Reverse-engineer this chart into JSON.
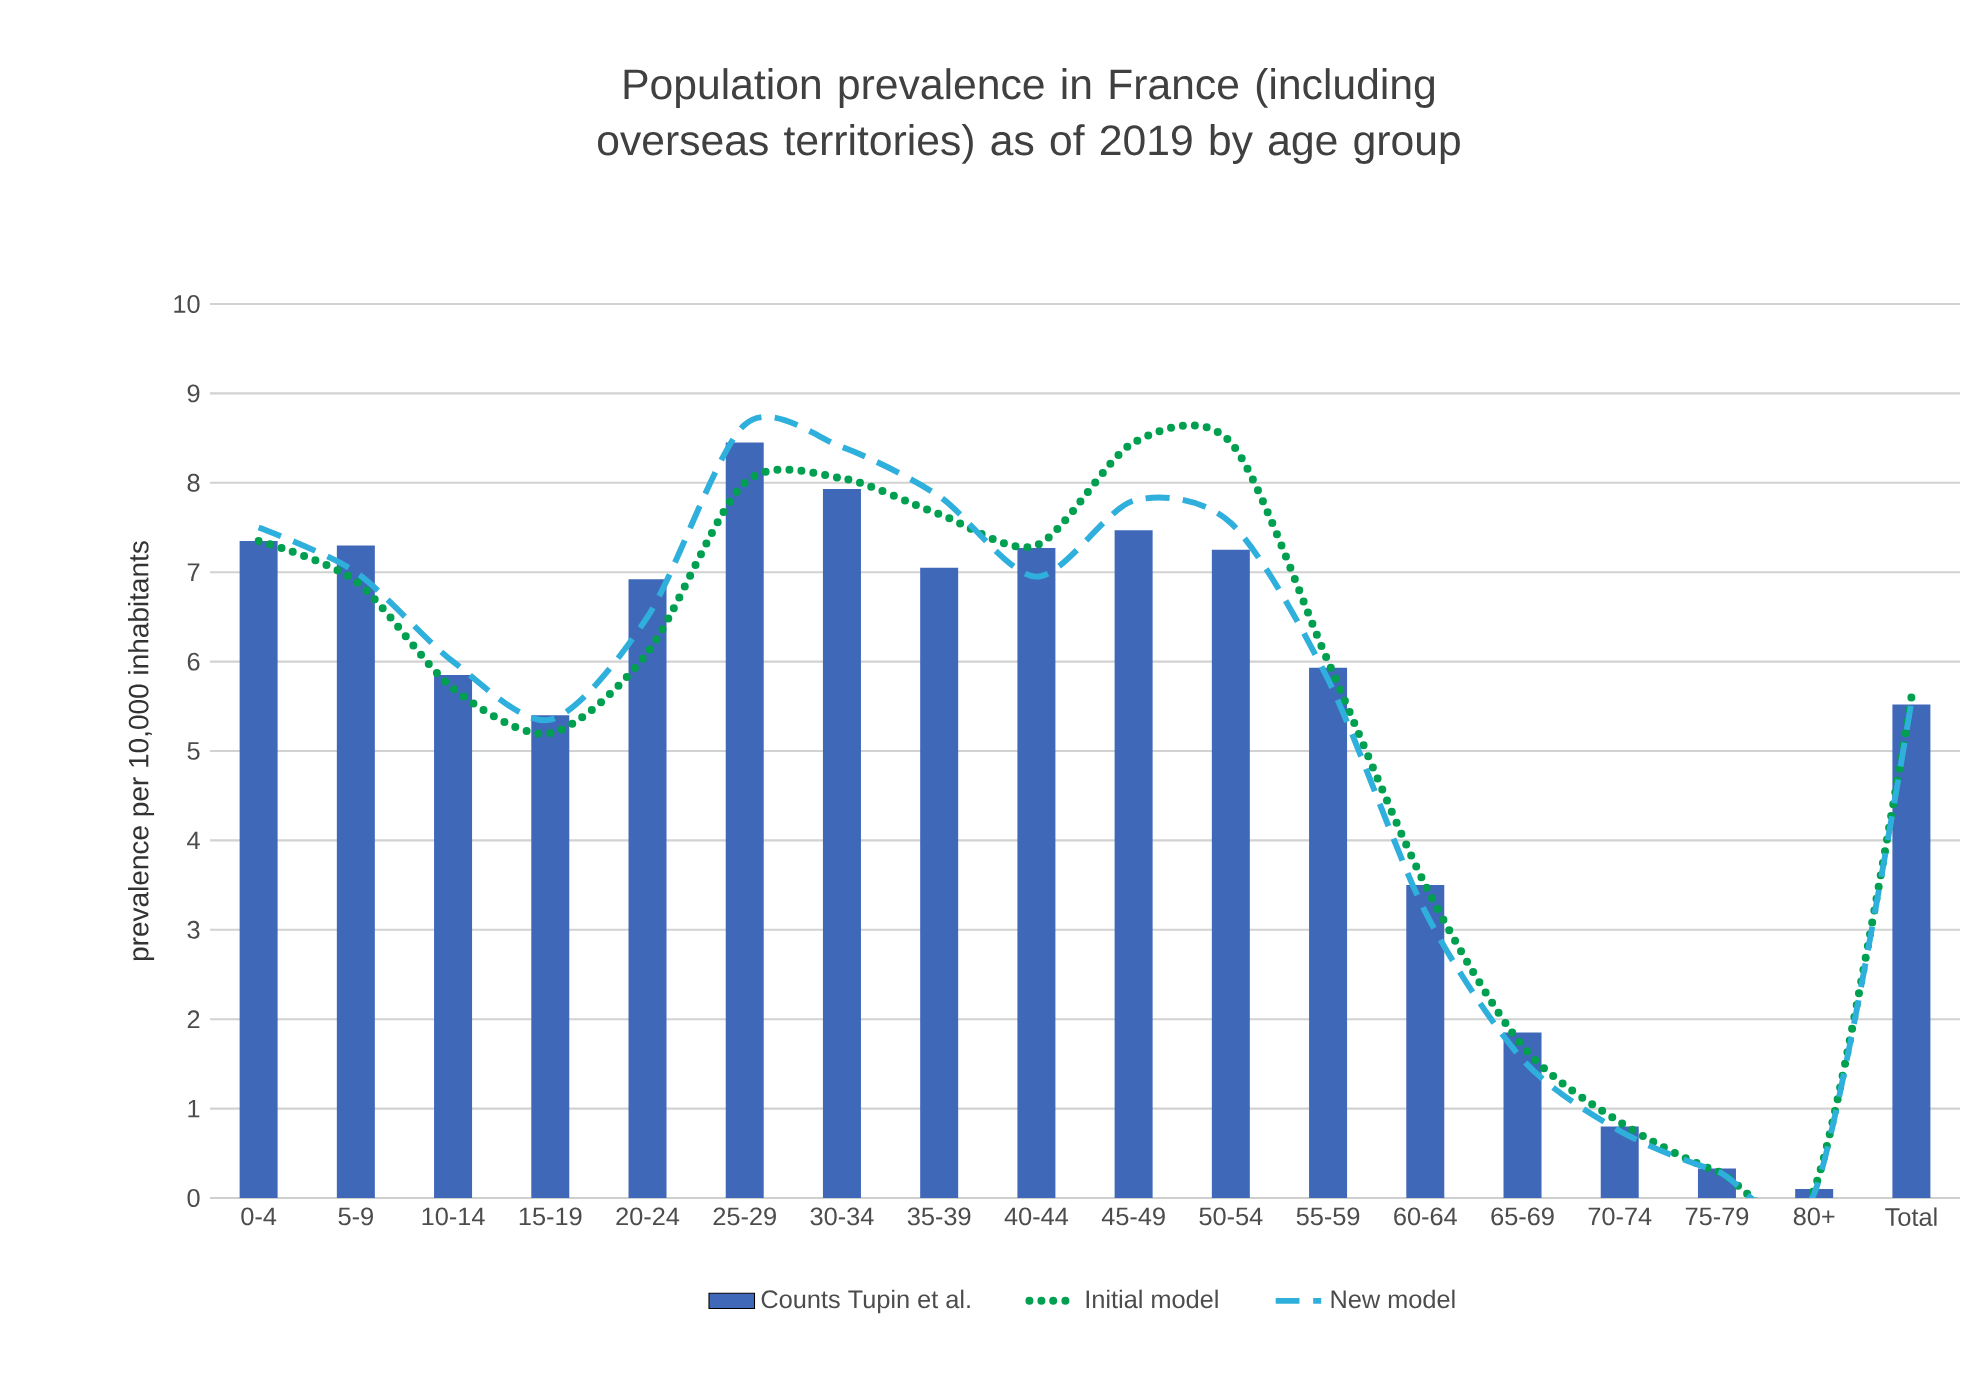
{
  "chart_data": {
    "type": "bar",
    "title": "Population prevalence in France (including overseas territories) as of 2019 by age group",
    "ylabel": "prevalence per 10,000 inhabitants",
    "categories": [
      "0-4",
      "5-9",
      "10-14",
      "15-19",
      "20-24",
      "25-29",
      "30-34",
      "35-39",
      "40-44",
      "45-49",
      "50-54",
      "55-59",
      "60-64",
      "65-69",
      "70-74",
      "75-79",
      "80+",
      "Total"
    ],
    "ylim": [
      0,
      10
    ],
    "yticks": [
      0,
      1,
      2,
      3,
      4,
      5,
      6,
      7,
      8,
      9,
      10
    ],
    "grid": "y",
    "legend": "bottom",
    "series": [
      {
        "name": "Counts Tupin et al.",
        "color": "#4068b8",
        "values": [
          7.35,
          7.3,
          5.85,
          5.4,
          6.92,
          8.45,
          7.93,
          7.05,
          7.27,
          7.47,
          7.25,
          5.93,
          3.5,
          1.85,
          0.8,
          0.33,
          0.1,
          5.52
        ]
      },
      {
        "name": "Initial model",
        "type": "line",
        "color": "#00a050",
        "line_style": "dotted",
        "values": [
          7.35,
          6.9,
          5.7,
          5.2,
          6.1,
          8.0,
          8.05,
          7.65,
          7.3,
          8.45,
          8.45,
          6.0,
          3.5,
          1.7,
          0.85,
          0.3,
          0.1,
          5.6
        ]
      },
      {
        "name": "New model",
        "type": "line",
        "color": "#2fb0dc",
        "line_style": "dashed",
        "values": [
          7.5,
          7.0,
          6.0,
          5.35,
          6.5,
          8.65,
          8.4,
          7.85,
          6.95,
          7.8,
          7.55,
          5.8,
          3.2,
          1.55,
          0.75,
          0.3,
          0.05,
          5.55
        ]
      }
    ]
  }
}
